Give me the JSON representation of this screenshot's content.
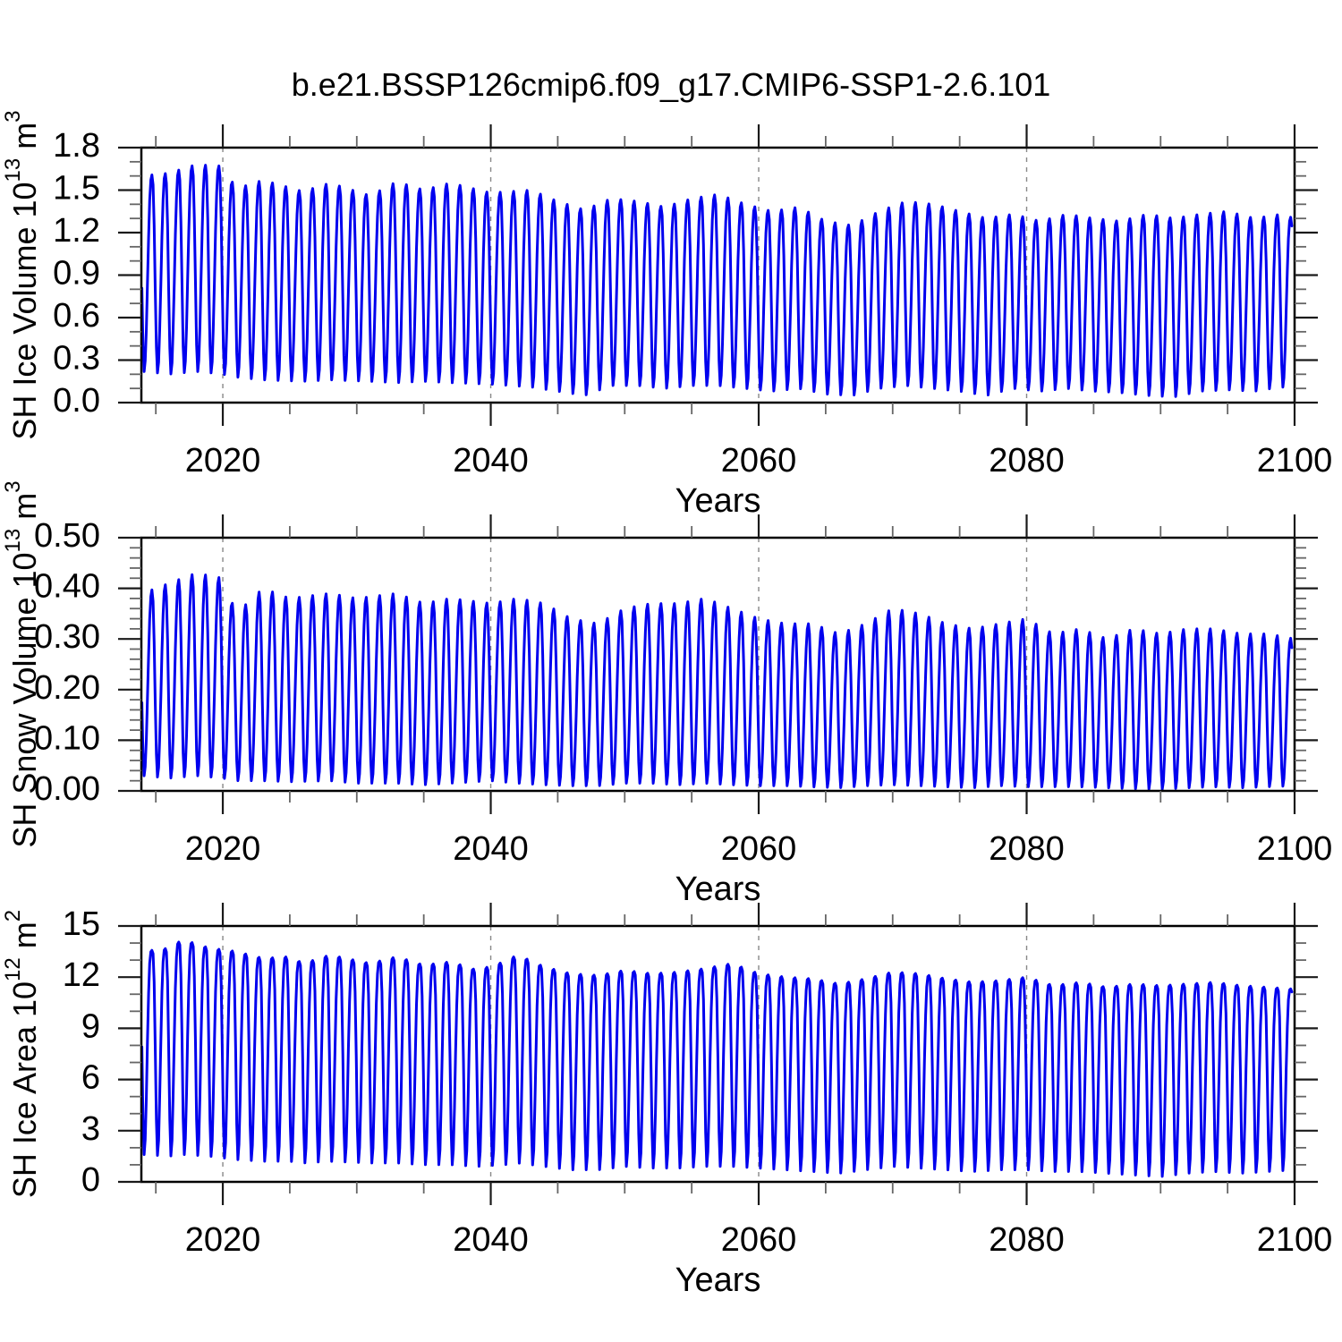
{
  "title": "b.e21.BSSP126cmip6.f09_g17.CMIP6-SSP1-2.6.101",
  "colors": {
    "line": "#0000EE",
    "frame": "#000000",
    "major_tick": "#1a1a1a",
    "minor_tick": "#666666",
    "grid": "#888888",
    "text": "#000000",
    "background": "#FFFFFF"
  },
  "x_axis": {
    "label": "Years",
    "range": [
      2013.92,
      2100.0
    ],
    "major_ticks": [
      2020,
      2040,
      2060,
      2080,
      2100
    ],
    "minor_step": 5,
    "grid_years": [
      2020,
      2040,
      2060,
      2080
    ]
  },
  "chart_data": [
    {
      "name": "sh-ice-volume",
      "type": "line",
      "title": "",
      "xlabel": "Years",
      "ylabel_parts": [
        {
          "t": "SH Ice Volume 10"
        },
        {
          "t": "13",
          "sup": true
        },
        {
          "t": " m"
        },
        {
          "t": "3",
          "sup": true
        }
      ],
      "ylim": [
        0,
        1.8
      ],
      "y_major_step": 0.3,
      "y_minor_step": 0.1,
      "y_decimals": 1,
      "y_tick_labels": [
        "0.0",
        "0.3",
        "0.6",
        "0.9",
        "1.2",
        "1.5",
        "1.8"
      ],
      "x_tick_labels": [
        "2020",
        "2040",
        "2060",
        "2080",
        "2100"
      ],
      "line_color": "#0000EE",
      "seasonal": {
        "start": 2013.9583,
        "end": 2099.7917,
        "points_per_year": 12,
        "min_phase": 0.13,
        "rise_fraction": 0.58,
        "top_sharpness": 1.25,
        "max_month_phase": 0.71,
        "min_month_phase": 0.125
      },
      "envelope": {
        "years": [
          2014,
          2016,
          2018,
          2020,
          2021,
          2023,
          2026,
          2028,
          2031,
          2033,
          2035,
          2037,
          2040,
          2043,
          2045,
          2047,
          2049,
          2051,
          2053,
          2055,
          2057,
          2059,
          2061,
          2063,
          2065,
          2067,
          2069,
          2071,
          2073,
          2075,
          2077,
          2079,
          2081,
          2083,
          2085,
          2087,
          2089,
          2091,
          2093,
          2095,
          2097,
          2099,
          2100
        ],
        "max": [
          1.6,
          1.62,
          1.68,
          1.67,
          1.51,
          1.57,
          1.49,
          1.55,
          1.46,
          1.56,
          1.5,
          1.55,
          1.48,
          1.5,
          1.42,
          1.36,
          1.44,
          1.42,
          1.38,
          1.44,
          1.47,
          1.4,
          1.35,
          1.38,
          1.28,
          1.25,
          1.35,
          1.42,
          1.4,
          1.35,
          1.3,
          1.33,
          1.28,
          1.33,
          1.3,
          1.28,
          1.33,
          1.3,
          1.33,
          1.35,
          1.3,
          1.33,
          1.3
        ],
        "min": [
          0.22,
          0.2,
          0.22,
          0.2,
          0.18,
          0.16,
          0.15,
          0.16,
          0.15,
          0.14,
          0.15,
          0.14,
          0.13,
          0.11,
          0.08,
          0.05,
          0.12,
          0.12,
          0.1,
          0.12,
          0.12,
          0.1,
          0.08,
          0.1,
          0.06,
          0.05,
          0.1,
          0.12,
          0.1,
          0.08,
          0.05,
          0.1,
          0.08,
          0.1,
          0.08,
          0.07,
          0.05,
          0.04,
          0.08,
          0.09,
          0.08,
          0.11,
          0.1
        ]
      }
    },
    {
      "name": "sh-snow-volume",
      "type": "line",
      "title": "",
      "xlabel": "Years",
      "ylabel_parts": [
        {
          "t": "SH Snow Volume 10"
        },
        {
          "t": "13",
          "sup": true
        },
        {
          "t": " m"
        },
        {
          "t": "3",
          "sup": true
        }
      ],
      "ylim": [
        0,
        0.5
      ],
      "y_major_step": 0.1,
      "y_minor_step": 0.02,
      "y_decimals": 2,
      "y_tick_labels": [
        "0.00",
        "0.10",
        "0.20",
        "0.30",
        "0.40",
        "0.50"
      ],
      "x_tick_labels": [
        "2020",
        "2040",
        "2060",
        "2080",
        "2100"
      ],
      "line_color": "#0000EE",
      "seasonal": {
        "start": 2013.9583,
        "end": 2099.7917,
        "points_per_year": 12,
        "min_phase": 0.13,
        "rise_fraction": 0.58,
        "top_sharpness": 1.15,
        "max_month_phase": 0.71,
        "min_month_phase": 0.125
      },
      "envelope": {
        "years": [
          2014,
          2016,
          2018,
          2020,
          2021,
          2023,
          2025,
          2028,
          2030,
          2033,
          2035,
          2037,
          2040,
          2042,
          2044,
          2046,
          2048,
          2050,
          2052,
          2054,
          2056,
          2058,
          2060,
          2062,
          2064,
          2066,
          2068,
          2070,
          2072,
          2074,
          2076,
          2078,
          2080,
          2082,
          2084,
          2086,
          2088,
          2090,
          2092,
          2094,
          2096,
          2098,
          2100
        ],
        "max": [
          0.39,
          0.41,
          0.43,
          0.42,
          0.35,
          0.4,
          0.38,
          0.39,
          0.38,
          0.39,
          0.37,
          0.38,
          0.37,
          0.38,
          0.37,
          0.34,
          0.33,
          0.36,
          0.37,
          0.37,
          0.38,
          0.36,
          0.34,
          0.33,
          0.33,
          0.31,
          0.33,
          0.36,
          0.35,
          0.33,
          0.32,
          0.33,
          0.34,
          0.31,
          0.32,
          0.3,
          0.32,
          0.31,
          0.32,
          0.32,
          0.31,
          0.31,
          0.3
        ],
        "min": [
          0.03,
          0.025,
          0.03,
          0.025,
          0.02,
          0.02,
          0.018,
          0.02,
          0.015,
          0.015,
          0.012,
          0.015,
          0.02,
          0.015,
          0.012,
          0.01,
          0.01,
          0.015,
          0.015,
          0.012,
          0.015,
          0.012,
          0.01,
          0.01,
          0.008,
          0.006,
          0.01,
          0.012,
          0.01,
          0.008,
          0.006,
          0.01,
          0.008,
          0.008,
          0.008,
          0.006,
          0.004,
          0.003,
          0.006,
          0.008,
          0.006,
          0.008,
          0.01
        ]
      }
    },
    {
      "name": "sh-ice-area",
      "type": "line",
      "title": "",
      "xlabel": "Years",
      "ylabel_parts": [
        {
          "t": "SH Ice Area 10"
        },
        {
          "t": "12",
          "sup": true
        },
        {
          "t": " m"
        },
        {
          "t": "2",
          "sup": true
        }
      ],
      "ylim": [
        0,
        15
      ],
      "y_major_step": 3,
      "y_minor_step": 1,
      "y_decimals": 0,
      "y_tick_labels": [
        "0",
        "3",
        "6",
        "9",
        "12",
        "15"
      ],
      "x_tick_labels": [
        "2020",
        "2040",
        "2060",
        "2080",
        "2100"
      ],
      "line_color": "#0000EE",
      "seasonal": {
        "start": 2013.9583,
        "end": 2099.7917,
        "points_per_year": 12,
        "min_phase": 0.13,
        "rise_fraction": 0.58,
        "top_sharpness": 1.7,
        "max_month_phase": 0.71,
        "min_month_phase": 0.125
      },
      "envelope": {
        "years": [
          2014,
          2016,
          2017,
          2019,
          2021,
          2023,
          2025,
          2026,
          2028,
          2031,
          2033,
          2035,
          2037,
          2039,
          2041,
          2042,
          2044,
          2046,
          2048,
          2050,
          2052,
          2054,
          2056,
          2058,
          2060,
          2062,
          2064,
          2066,
          2068,
          2070,
          2072,
          2074,
          2076,
          2078,
          2080,
          2082,
          2084,
          2086,
          2088,
          2090,
          2092,
          2094,
          2096,
          2098,
          2100
        ],
        "max": [
          13.5,
          13.7,
          14.2,
          13.7,
          13.5,
          13.1,
          13.2,
          12.8,
          13.3,
          12.8,
          13.2,
          12.7,
          12.9,
          12.4,
          12.9,
          13.3,
          12.6,
          12.2,
          12.1,
          12.4,
          12.2,
          12.3,
          12.5,
          12.8,
          12.2,
          12.0,
          11.9,
          11.6,
          11.9,
          12.3,
          12.2,
          11.9,
          11.7,
          11.8,
          12.0,
          11.5,
          11.7,
          11.4,
          11.6,
          11.5,
          11.6,
          11.7,
          11.5,
          11.4,
          11.3
        ],
        "min": [
          1.6,
          1.5,
          1.6,
          1.5,
          1.3,
          1.2,
          1.2,
          1.1,
          1.2,
          1.1,
          1.1,
          1.0,
          1.0,
          0.9,
          1.0,
          1.1,
          0.9,
          0.7,
          0.7,
          0.9,
          0.8,
          0.8,
          0.9,
          0.9,
          0.8,
          0.7,
          0.6,
          0.5,
          0.7,
          0.9,
          0.8,
          0.7,
          0.6,
          0.7,
          0.7,
          0.6,
          0.6,
          0.5,
          0.4,
          0.3,
          0.5,
          0.6,
          0.5,
          0.6,
          0.7
        ]
      }
    }
  ]
}
